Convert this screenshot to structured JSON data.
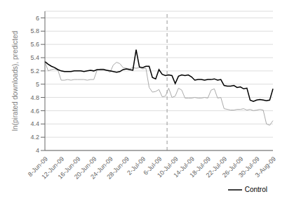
{
  "chart_data": {
    "type": "line",
    "ylabel": "ln(pirated downloads), predicted",
    "categories": [
      "8-Jun-09",
      null,
      null,
      null,
      null,
      "12-Jun-09",
      null,
      null,
      null,
      null,
      "16-Jun-09",
      null,
      null,
      null,
      null,
      "20-Jun-09",
      null,
      null,
      null,
      null,
      "24-Jun-09",
      null,
      null,
      null,
      null,
      "28-Jun-09",
      null,
      null,
      null,
      null,
      "2-Jul-09",
      null,
      null,
      null,
      null,
      "6-Jul-09",
      null,
      null,
      null,
      null,
      "10-Jul-09",
      null,
      null,
      null,
      null,
      "14-Jul-09",
      null,
      null,
      null,
      null,
      "18-Jul-09",
      null,
      null,
      null,
      null,
      "22-Jul-09",
      null,
      null,
      null,
      null,
      "26-Jul-09",
      null,
      null,
      null,
      null,
      "30-Jul-09",
      null,
      null,
      null,
      null,
      "3-Aug-09"
    ],
    "series": [
      {
        "color": "#aaaaaa",
        "values": [
          5.34,
          5.2,
          5.22,
          5.23,
          5.21,
          5.06,
          5.06,
          5.07,
          5.06,
          5.07,
          5.07,
          5.07,
          5.07,
          5.06,
          5.07,
          5.07,
          5.21,
          5.23,
          5.23,
          5.21,
          5.18,
          5.29,
          5.33,
          5.31,
          5.25,
          5.24,
          5.23,
          5.25,
          5.24,
          5.25,
          5.23,
          5.24,
          4.95,
          4.88,
          4.89,
          4.92,
          4.81,
          4.82,
          4.94,
          4.8,
          4.82,
          4.94,
          4.91,
          4.79,
          4.79,
          4.79,
          4.8,
          4.79,
          4.79,
          4.8,
          4.79,
          4.91,
          4.93,
          4.79,
          4.8,
          4.63,
          4.62,
          4.61,
          4.61,
          4.62,
          4.62,
          4.63,
          4.61,
          4.62,
          4.6,
          4.61,
          4.62,
          4.61,
          4.4,
          4.38,
          4.45
        ]
      },
      {
        "name": "Control",
        "color": "#000000",
        "values": [
          5.34,
          5.3,
          5.27,
          5.25,
          5.22,
          5.2,
          5.19,
          5.19,
          5.19,
          5.2,
          5.2,
          5.2,
          5.19,
          5.2,
          5.21,
          5.2,
          5.22,
          5.22,
          5.22,
          5.21,
          5.2,
          5.19,
          5.18,
          5.19,
          5.22,
          5.23,
          5.22,
          5.21,
          5.52,
          5.26,
          5.25,
          5.27,
          5.27,
          5.1,
          5.08,
          5.22,
          5.15,
          5.13,
          5.14,
          5.13,
          5.01,
          5.12,
          5.14,
          5.13,
          5.14,
          5.11,
          5.06,
          5.07,
          5.07,
          5.06,
          5.07,
          5.07,
          5.08,
          5.06,
          5.07,
          4.98,
          4.97,
          4.97,
          4.98,
          4.95,
          4.96,
          4.93,
          4.94,
          4.76,
          4.74,
          4.76,
          4.77,
          4.76,
          4.75,
          4.76,
          4.93
        ]
      }
    ],
    "vline": 37.5,
    "ylim": [
      4.0,
      6.1
    ],
    "yticks": [
      4,
      4.2,
      4.4,
      4.6,
      4.8,
      5,
      5.2,
      5.4,
      5.6,
      5.8,
      6
    ],
    "grid": true,
    "legend": "lower right"
  }
}
